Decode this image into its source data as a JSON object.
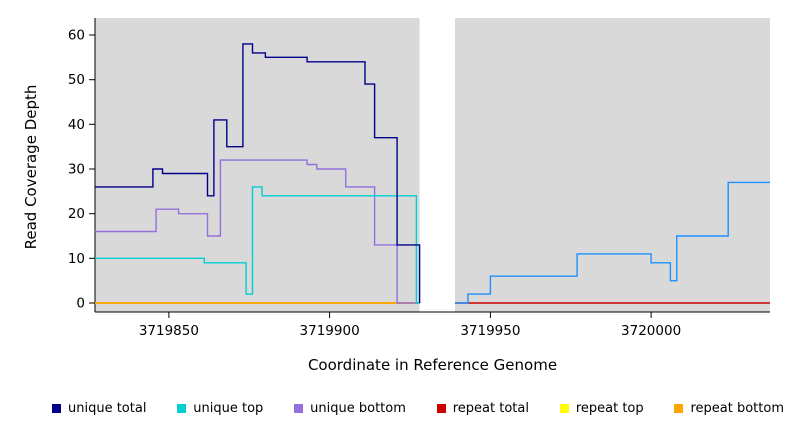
{
  "chart_data": {
    "type": "line",
    "step": true,
    "title": "",
    "xlabel": "Coordinate in Reference Genome",
    "ylabel": "Read Coverage Depth",
    "xlim": [
      3719827,
      3720037
    ],
    "ylim": [
      0,
      60
    ],
    "xticks": [
      3719850,
      3719900,
      3719950,
      3720000
    ],
    "yticks": [
      0,
      10,
      20,
      30,
      40,
      50,
      60
    ],
    "plot_bg": "#d9d9d9",
    "gap_x": [
      3719928,
      3719939
    ],
    "grid": false,
    "legend_position": "bottom",
    "series": [
      {
        "name": "repeat total",
        "color": "#cc0000",
        "segments": [
          {
            "xend": 3719928,
            "steps": [
              [
                3719827,
                0
              ]
            ]
          },
          {
            "xend": 3720037,
            "steps": [
              [
                3719939,
                0
              ]
            ]
          }
        ]
      },
      {
        "name": "repeat top",
        "color": "#ffff00",
        "segments": [
          {
            "xend": 3719928,
            "steps": [
              [
                3719827,
                0
              ]
            ]
          }
        ]
      },
      {
        "name": "repeat bottom",
        "color": "#ffa500",
        "segments": [
          {
            "xend": 3719928,
            "steps": [
              [
                3719827,
                0
              ]
            ]
          }
        ]
      },
      {
        "name": "unique bottom",
        "color": "#9370db",
        "segments": [
          {
            "xend": 3719928,
            "steps": [
              [
                3719827,
                16
              ],
              [
                3719846,
                21
              ],
              [
                3719853,
                20
              ],
              [
                3719862,
                15
              ],
              [
                3719866,
                32
              ],
              [
                3719893,
                31
              ],
              [
                3719896,
                30
              ],
              [
                3719905,
                26
              ],
              [
                3719914,
                13
              ],
              [
                3719921,
                0
              ]
            ]
          }
        ]
      },
      {
        "name": "unique top",
        "color": "#00ced1",
        "segments": [
          {
            "xend": 3719928,
            "steps": [
              [
                3719827,
                10
              ],
              [
                3719861,
                9
              ],
              [
                3719874,
                2
              ],
              [
                3719876,
                26
              ],
              [
                3719879,
                24
              ],
              [
                3719927,
                0
              ]
            ]
          }
        ]
      },
      {
        "name": "unique total",
        "color": "#00008b",
        "segments": [
          {
            "xend": 3719928,
            "steps": [
              [
                3719827,
                26
              ],
              [
                3719845,
                30
              ],
              [
                3719848,
                29
              ],
              [
                3719862,
                24
              ],
              [
                3719864,
                41
              ],
              [
                3719868,
                35
              ],
              [
                3719873,
                58
              ],
              [
                3719876,
                56
              ],
              [
                3719880,
                55
              ],
              [
                3719893,
                54
              ],
              [
                3719911,
                49
              ],
              [
                3719914,
                37
              ],
              [
                3719921,
                13
              ],
              [
                3719928,
                0
              ]
            ]
          },
          {
            "xend": 3720037,
            "color": "#1e90ff",
            "steps": [
              [
                3719939,
                0
              ],
              [
                3719943,
                2
              ],
              [
                3719950,
                6
              ],
              [
                3719977,
                11
              ],
              [
                3720000,
                9
              ],
              [
                3720006,
                5
              ],
              [
                3720008,
                15
              ],
              [
                3720024,
                27
              ]
            ]
          }
        ]
      }
    ]
  },
  "legend": {
    "items": [
      {
        "label": "unique total",
        "color": "#00008b"
      },
      {
        "label": "unique top",
        "color": "#00ced1"
      },
      {
        "label": "unique bottom",
        "color": "#9370db"
      },
      {
        "label": "repeat total",
        "color": "#cc0000"
      },
      {
        "label": "repeat top",
        "color": "#ffff00"
      },
      {
        "label": "repeat bottom",
        "color": "#ffa500"
      }
    ]
  }
}
